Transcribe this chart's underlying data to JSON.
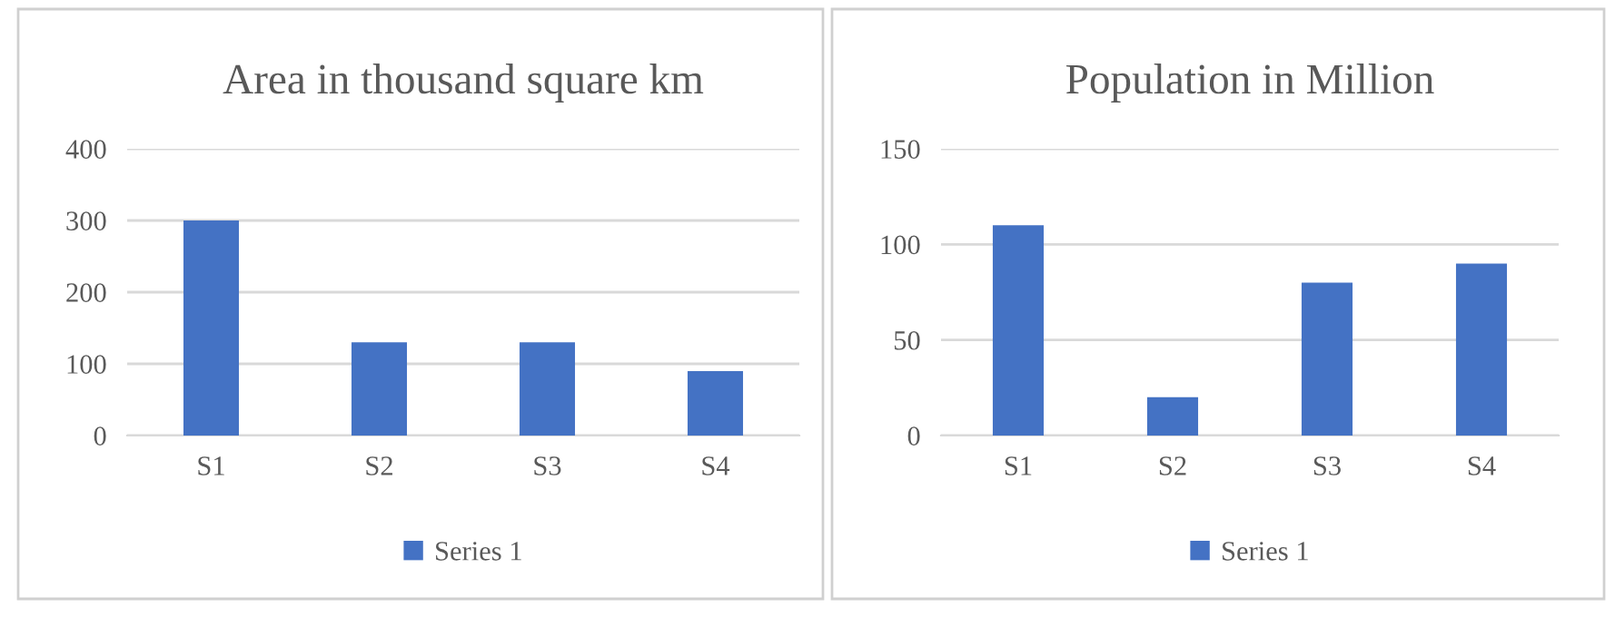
{
  "chart_data": [
    {
      "type": "bar",
      "title": "Area in thousand square km",
      "categories": [
        "S1",
        "S2",
        "S3",
        "S4"
      ],
      "series": [
        {
          "name": "Series 1",
          "color": "#4472c4",
          "values": [
            300,
            130,
            130,
            90
          ]
        }
      ],
      "ylim": [
        0,
        400
      ],
      "yticks": [
        0,
        100,
        200,
        300,
        400
      ],
      "grid": "y",
      "legend": "bottom"
    },
    {
      "type": "bar",
      "title": "Population in Million",
      "categories": [
        "S1",
        "S2",
        "S3",
        "S4"
      ],
      "series": [
        {
          "name": "Series 1",
          "color": "#4472c4",
          "values": [
            110,
            20,
            80,
            90
          ]
        }
      ],
      "ylim": [
        0,
        150
      ],
      "yticks": [
        0,
        50,
        100,
        150
      ],
      "grid": "y",
      "legend": "bottom"
    }
  ]
}
